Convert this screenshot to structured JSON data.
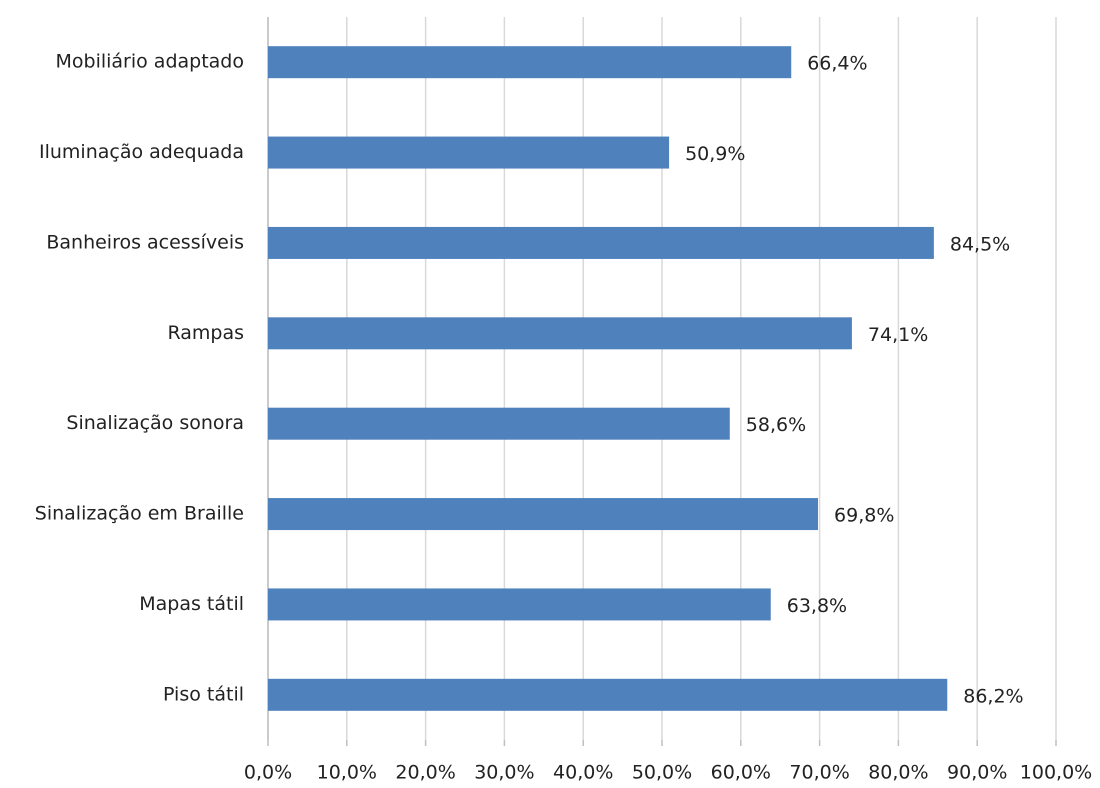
{
  "chart_data": {
    "type": "barh",
    "categories": [
      "Mobiliário adaptado",
      "Iluminação adequada",
      "Banheiros acessíveis",
      "Rampas",
      "Sinalização sonora",
      "Sinalização em Braille",
      "Mapas tátil",
      "Piso tátil"
    ],
    "values": [
      66.4,
      50.9,
      84.5,
      74.1,
      58.6,
      69.8,
      63.8,
      86.2
    ],
    "value_labels": [
      "66,4%",
      "50,9%",
      "84,5%",
      "74,1%",
      "58,6%",
      "69,8%",
      "63,8%",
      "86,2%"
    ],
    "color": "#4f81bd",
    "xlim": [
      0,
      100
    ],
    "xticks": [
      {
        "value": 0,
        "label": "0,0%"
      },
      {
        "value": 10,
        "label": "10,0%"
      },
      {
        "value": 20,
        "label": "20,0%"
      },
      {
        "value": 30,
        "label": "30,0%"
      },
      {
        "value": 40,
        "label": "40,0%"
      },
      {
        "value": 50,
        "label": "50,0%"
      },
      {
        "value": 60,
        "label": "60,0%"
      },
      {
        "value": 70,
        "label": "70,0%"
      },
      {
        "value": 80,
        "label": "80,0%"
      },
      {
        "value": 90,
        "label": "90,0%"
      },
      {
        "value": 100,
        "label": "100,0%"
      }
    ],
    "grid": true
  }
}
